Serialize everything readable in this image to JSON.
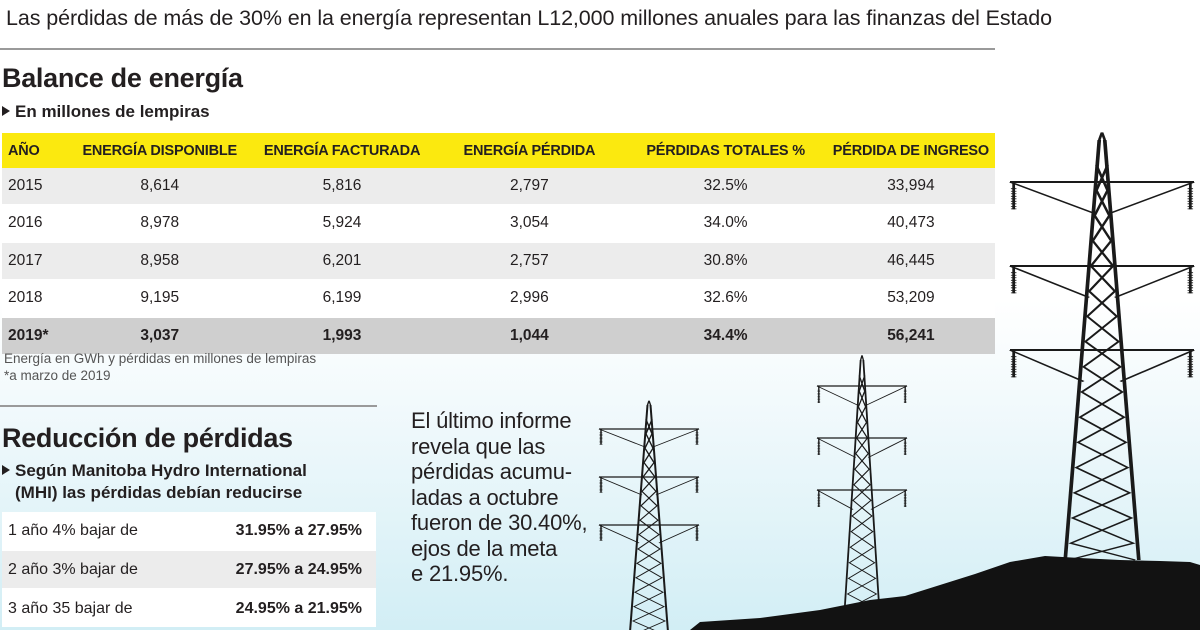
{
  "headline": "Las pérdidas de más de 30% en la energía representan L12,000 millones anuales para las finanzas del Estado",
  "balance": {
    "title": "Balance de energía",
    "subtitle": "En millones de lempiras",
    "headers": [
      "AÑO",
      "ENERGÍA DISPONIBLE",
      "ENERGÍA FACTURADA",
      "ENERGÍA PÉRDIDA",
      "PÉRDIDAS TOTALES %",
      "PÉRDIDA DE INGRESO"
    ],
    "rows": [
      [
        "2015",
        "8,614",
        "5,816",
        "2,797",
        "32.5%",
        "33,994"
      ],
      [
        "2016",
        "8,978",
        "5,924",
        "3,054",
        "34.0%",
        "40,473"
      ],
      [
        "2017",
        "8,958",
        "6,201",
        "2,757",
        "30.8%",
        "46,445"
      ],
      [
        "2018",
        "9,195",
        "6,199",
        "2,996",
        "32.6%",
        "53,209"
      ],
      [
        "2019*",
        "3,037",
        "1,993",
        "1,044",
        "34.4%",
        "56,241"
      ]
    ],
    "note1": "Energía en GWh y pérdidas en millones de lempiras",
    "note2": "*a marzo de 2019"
  },
  "reduccion": {
    "title": "Reducción de pérdidas",
    "subtitle_line1": "Según Manitoba Hydro International",
    "subtitle_line2": "(MHI) las pérdidas debían reducirse",
    "rows": [
      [
        "1 año 4% bajar de",
        "31.95% a 27.95%"
      ],
      [
        "2 año 3% bajar de",
        "27.95% a 24.95%"
      ],
      [
        "3 año 35  bajar de",
        "24.95% a 21.95%"
      ]
    ]
  },
  "informe": {
    "lines": [
      "El último informe",
      "revela que las",
      "pérdidas acumu-",
      "ladas a octubre",
      "fueron de 30.40%,",
      "ejos de la meta",
      "e 21.95%."
    ]
  },
  "colors": {
    "header_yellow": "#fbe90f",
    "row_gray": "#ececec",
    "highlight_gray": "#cfcfcf",
    "tower": "#1a1a1a",
    "sky": "#d2eef5"
  },
  "icons": [
    "transmission-tower-icon"
  ]
}
